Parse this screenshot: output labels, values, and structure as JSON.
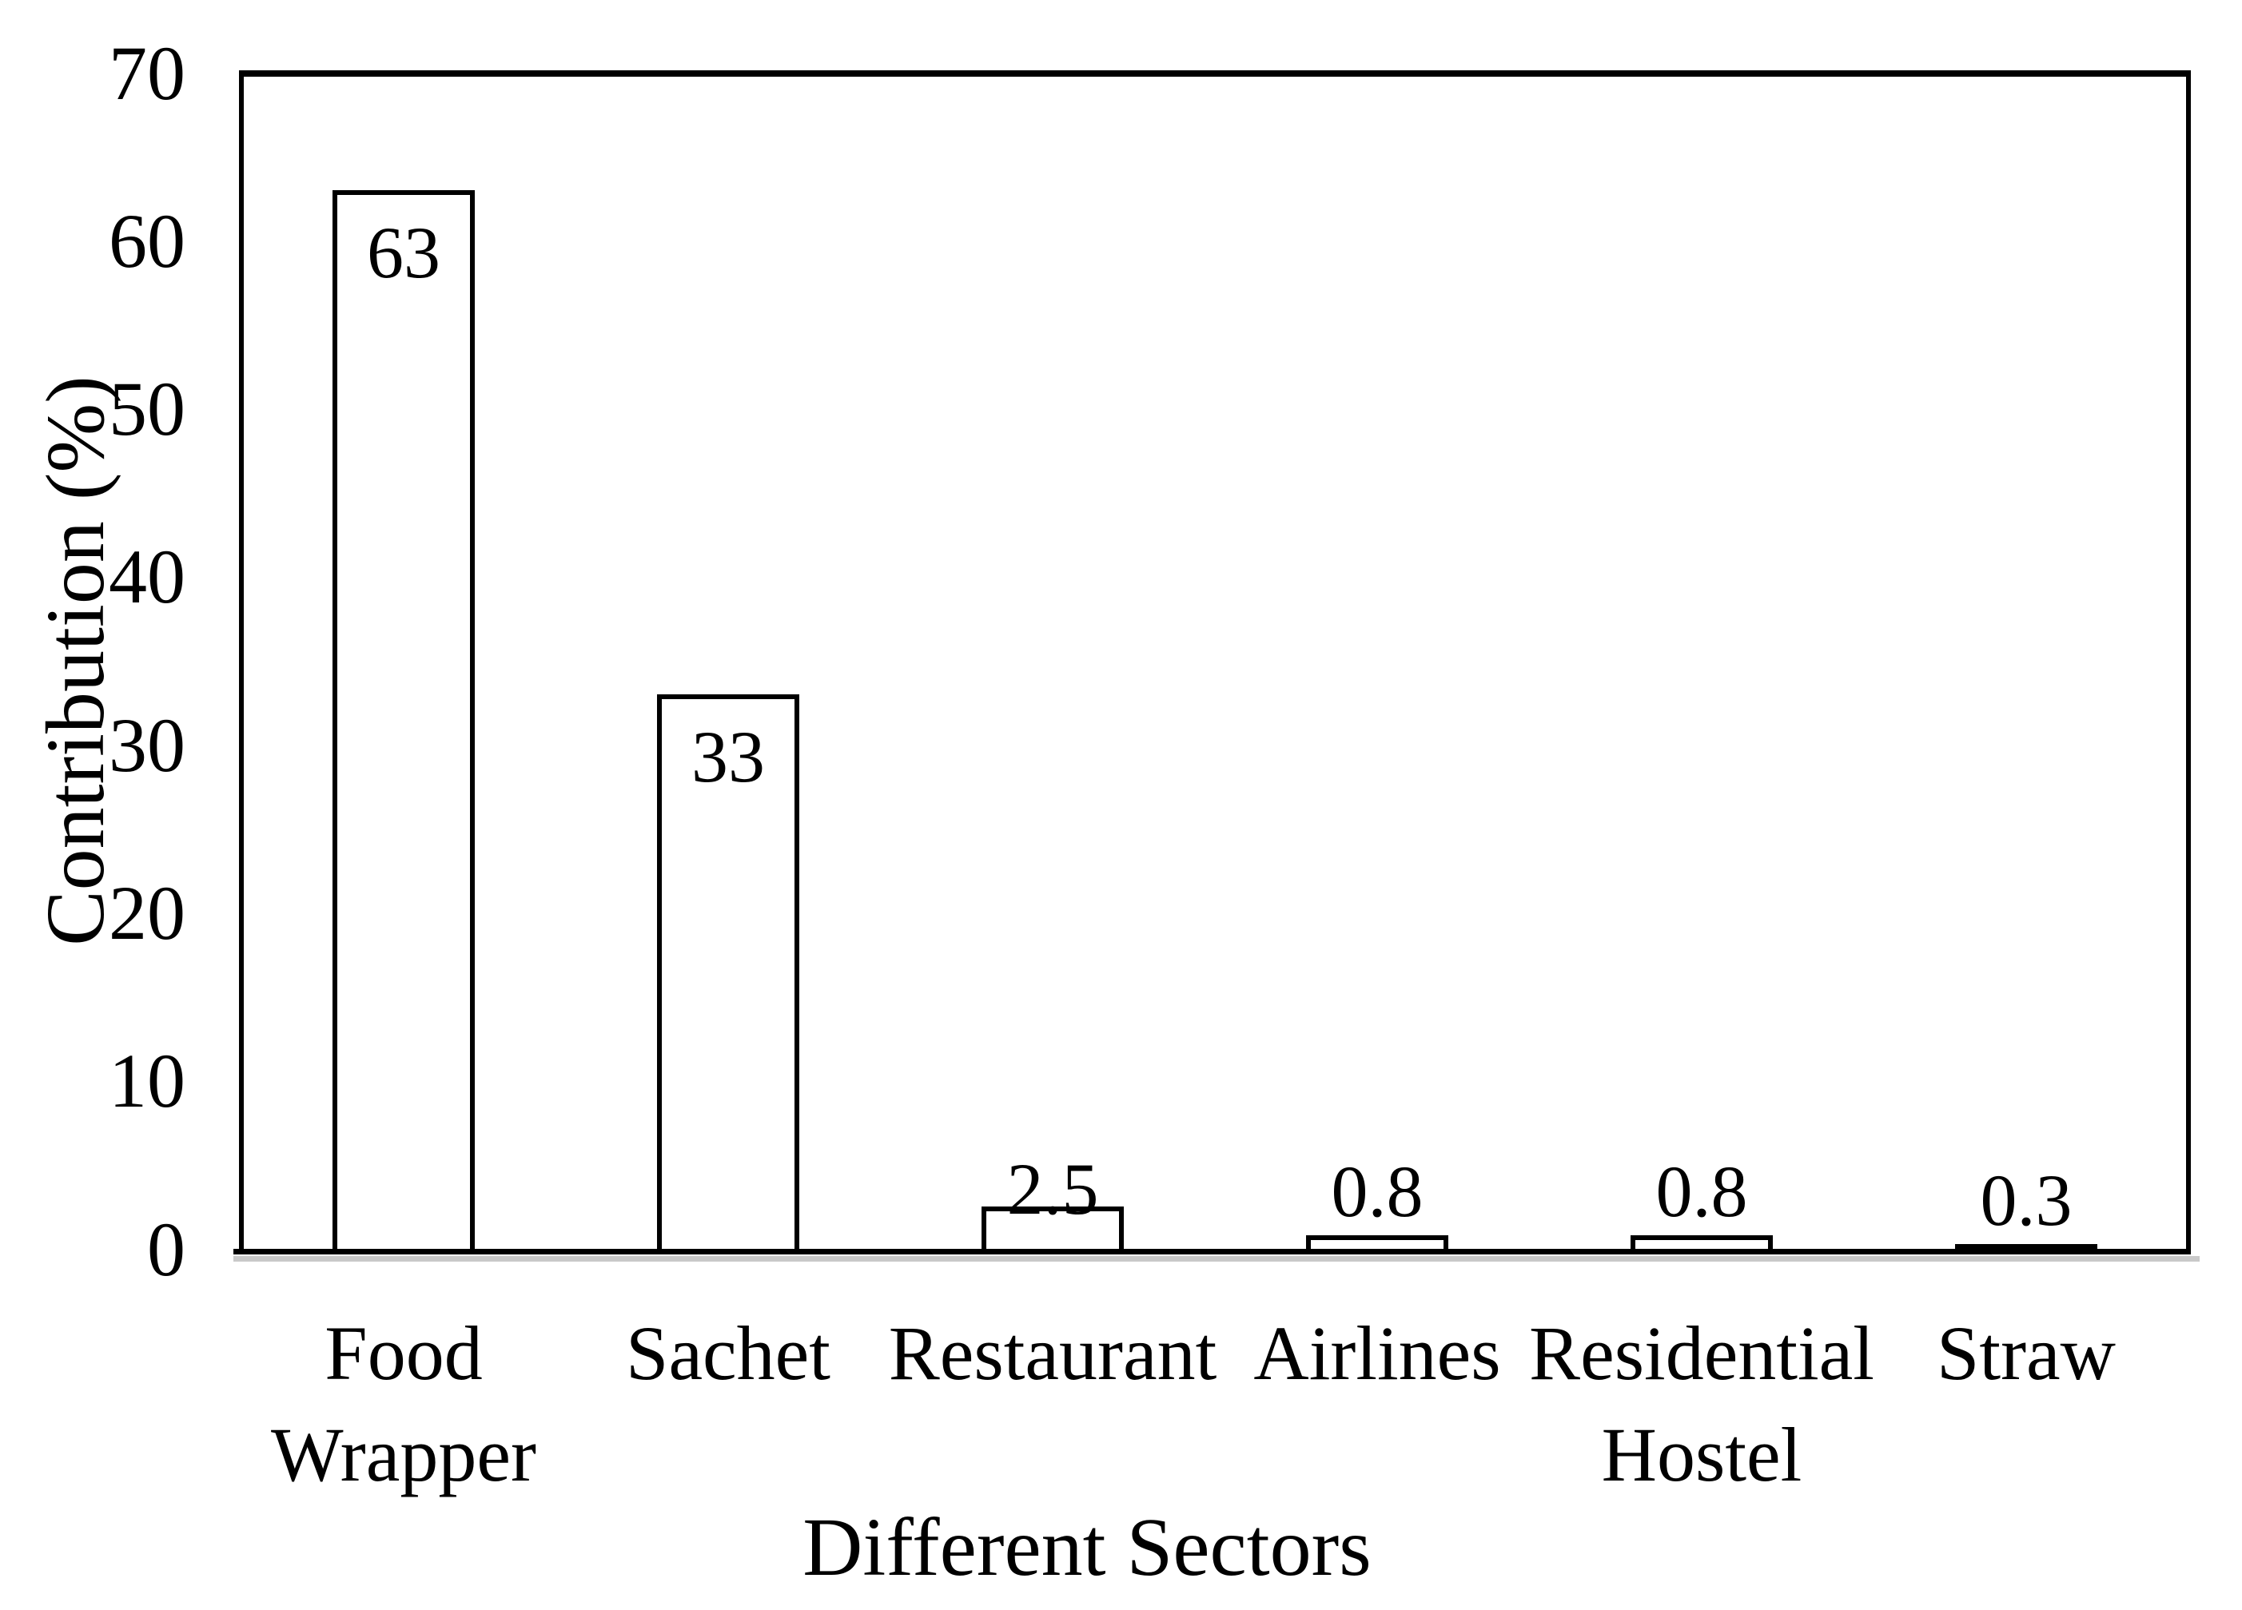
{
  "chart_data": {
    "type": "bar",
    "title": "",
    "xlabel": "Different Sectors",
    "ylabel": "Contribution (%)",
    "categories": [
      "Food Wrapper",
      "Sachet",
      "Restaurant",
      "Airlines",
      "Residential Hostel",
      "Straw"
    ],
    "category_display": [
      "Food\nWrapper",
      "Sachet",
      "Restaurant",
      "Airlines",
      "Residential\nHostel",
      "Straw"
    ],
    "values": [
      63,
      33,
      2.5,
      0.8,
      0.8,
      0.3
    ],
    "value_labels": [
      "63",
      "33",
      "2.5",
      "0.8",
      "0.8",
      "0.3"
    ],
    "ylim": [
      0,
      70
    ],
    "ytick_step": 10,
    "ytick_labels": [
      "0",
      "10",
      "20",
      "30",
      "40",
      "50",
      "60",
      "70"
    ],
    "grid": "off",
    "legend": "none",
    "bar_fill_color": "#ffffff",
    "bar_border_color": "#000000",
    "axis_color": "#000000",
    "baseline_shadow_color": "#c9c9c9",
    "background_color": "#ffffff"
  }
}
